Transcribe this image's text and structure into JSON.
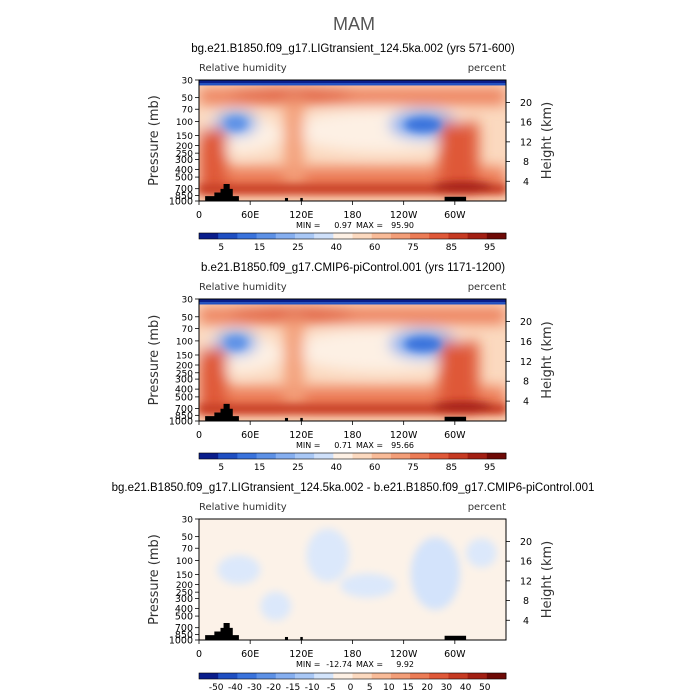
{
  "figure": {
    "title": "MAM"
  },
  "colors": {
    "sequential": [
      "#0a1e8c",
      "#1f4fc2",
      "#3a73dc",
      "#5d91e6",
      "#86aff0",
      "#a9c8f6",
      "#cfe0fa",
      "#fdf0e4",
      "#fbd9bf",
      "#f8bb98",
      "#f39e78",
      "#ec7c56",
      "#df5838",
      "#c63a22",
      "#a21f13",
      "#6e0a06"
    ],
    "diverging": [
      "#0a1e8c",
      "#1f4fc2",
      "#3a73dc",
      "#5d91e6",
      "#86aff0",
      "#a9c8f6",
      "#d3e4fb",
      "#fdf0e4",
      "#fbd9bf",
      "#f8bb98",
      "#f39e78",
      "#ec7c56",
      "#df5838",
      "#c63a22",
      "#a21f13",
      "#6e0a06"
    ],
    "topography": "#000000"
  },
  "chart_data": [
    {
      "type": "heatmap",
      "title": "bg.e21.B1850.f09_g17.LIGtransient_124.5ka.002 (yrs 571-600)",
      "left_label": "Relative humidity",
      "right_label": "percent",
      "ylabel": "Pressure (mb)",
      "ylabel_right": "Height (km)",
      "x_ticks": [
        "0",
        "60E",
        "120E",
        "180",
        "120W",
        "60W"
      ],
      "y_ticks": [
        "1000",
        "850",
        "700",
        "500",
        "400",
        "300",
        "250",
        "200",
        "150",
        "100",
        "70",
        "50",
        "30"
      ],
      "y_ticks_right": [
        "4",
        "8",
        "12",
        "16",
        "20"
      ],
      "min_label": "MIN =",
      "min": "0.97",
      "max_label": "MAX =",
      "max": "95.90",
      "colorbar_labels": [
        "5",
        "15",
        "25",
        "40",
        "60",
        "75",
        "85",
        "95"
      ],
      "colorbar_levels": [
        5,
        10,
        15,
        20,
        25,
        30,
        40,
        50,
        60,
        70,
        75,
        80,
        85,
        90,
        95
      ],
      "ylim": [
        1000,
        30
      ],
      "xlim": [
        0,
        360
      ],
      "value_range": [
        0,
        100
      ]
    },
    {
      "type": "heatmap",
      "title": "b.e21.B1850.f09_g17.CMIP6-piControl.001 (yrs 1171-1200)",
      "left_label": "Relative humidity",
      "right_label": "percent",
      "ylabel": "Pressure (mb)",
      "ylabel_right": "Height (km)",
      "x_ticks": [
        "0",
        "60E",
        "120E",
        "180",
        "120W",
        "60W"
      ],
      "y_ticks": [
        "1000",
        "850",
        "700",
        "500",
        "400",
        "300",
        "250",
        "200",
        "150",
        "100",
        "70",
        "50",
        "30"
      ],
      "y_ticks_right": [
        "4",
        "8",
        "12",
        "16",
        "20"
      ],
      "min_label": "MIN =",
      "min": "0.71",
      "max_label": "MAX =",
      "max": "95.66",
      "colorbar_labels": [
        "5",
        "15",
        "25",
        "40",
        "60",
        "75",
        "85",
        "95"
      ],
      "colorbar_levels": [
        5,
        10,
        15,
        20,
        25,
        30,
        40,
        50,
        60,
        70,
        75,
        80,
        85,
        90,
        95
      ],
      "ylim": [
        1000,
        30
      ],
      "xlim": [
        0,
        360
      ],
      "value_range": [
        0,
        100
      ]
    },
    {
      "type": "heatmap",
      "title": "bg.e21.B1850.f09_g17.LIGtransient_124.5ka.002 - b.e21.B1850.f09_g17.CMIP6-piControl.001",
      "left_label": "Relative humidity",
      "right_label": "percent",
      "ylabel": "Pressure (mb)",
      "ylabel_right": "Height (km)",
      "x_ticks": [
        "0",
        "60E",
        "120E",
        "180",
        "120W",
        "60W"
      ],
      "y_ticks": [
        "1000",
        "850",
        "700",
        "500",
        "400",
        "300",
        "250",
        "200",
        "150",
        "100",
        "70",
        "50",
        "30"
      ],
      "y_ticks_right": [
        "4",
        "8",
        "12",
        "16",
        "20"
      ],
      "min_label": "MIN =",
      "min": "-12.74",
      "max_label": "MAX =",
      "max": "9.92",
      "colorbar_labels": [
        "-50",
        "-40",
        "-30",
        "-20",
        "-15",
        "-10",
        "-5",
        "0",
        "5",
        "10",
        "15",
        "20",
        "30",
        "40",
        "50"
      ],
      "colorbar_levels": [
        -50,
        -40,
        -30,
        -20,
        -15,
        -10,
        -5,
        0,
        5,
        10,
        15,
        20,
        30,
        40,
        50
      ],
      "ylim": [
        1000,
        30
      ],
      "xlim": [
        0,
        360
      ],
      "value_range": [
        -15,
        10
      ]
    }
  ]
}
